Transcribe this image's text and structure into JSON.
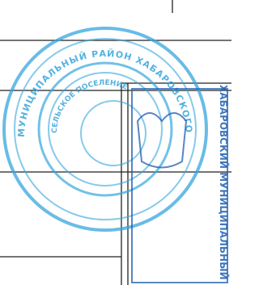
{
  "stamp": {
    "outer_text": "МУНИЦИПАЛЬНЫЙ РАЙОН ХАБАРОВСКОГО КРАЯ",
    "inner_text": "СЕЛЬСКОЕ ПОСЕЛЕНИЕ"
  },
  "second_stamp": {
    "text": "ХАБАРОВСКИЙ МУНИЦИПАЛЬНЫЙ РАЙОН"
  }
}
